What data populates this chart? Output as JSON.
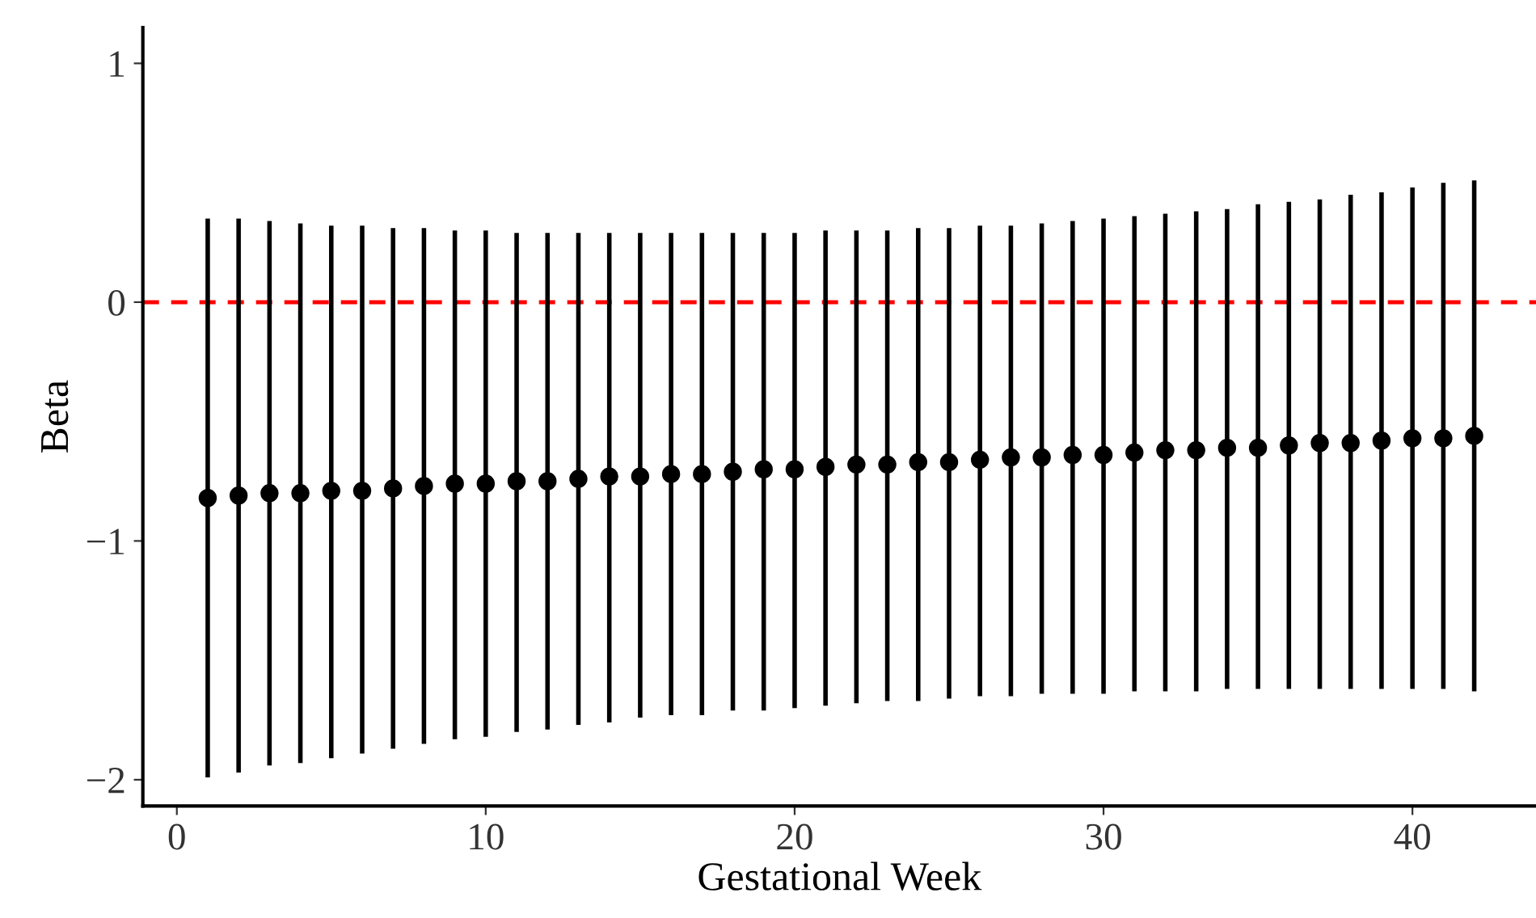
{
  "chart_data": {
    "type": "scatter",
    "xlabel": "Gestational Week",
    "ylabel": "Beta",
    "x": [
      1,
      2,
      3,
      4,
      5,
      6,
      7,
      8,
      9,
      10,
      11,
      12,
      13,
      14,
      15,
      16,
      17,
      18,
      19,
      20,
      21,
      22,
      23,
      24,
      25,
      26,
      27,
      28,
      29,
      30,
      31,
      32,
      33,
      34,
      35,
      36,
      37,
      38,
      39,
      40,
      41,
      42
    ],
    "series": [
      {
        "color": "#000000",
        "values": [
          -0.82,
          -0.81,
          -0.8,
          -0.8,
          -0.79,
          -0.79,
          -0.78,
          -0.77,
          -0.76,
          -0.76,
          -0.75,
          -0.75,
          -0.74,
          -0.73,
          -0.73,
          -0.72,
          -0.72,
          -0.71,
          -0.7,
          -0.7,
          -0.69,
          -0.68,
          -0.68,
          -0.67,
          -0.67,
          -0.66,
          -0.65,
          -0.65,
          -0.64,
          -0.64,
          -0.63,
          -0.62,
          -0.62,
          -0.61,
          -0.61,
          -0.6,
          -0.59,
          -0.59,
          -0.58,
          -0.57,
          -0.57,
          -0.56
        ],
        "errors": [
          [
            -1.99,
            0.35
          ],
          [
            -1.97,
            0.35
          ],
          [
            -1.94,
            0.34
          ],
          [
            -1.93,
            0.33
          ],
          [
            -1.91,
            0.32
          ],
          [
            -1.89,
            0.32
          ],
          [
            -1.87,
            0.31
          ],
          [
            -1.85,
            0.31
          ],
          [
            -1.83,
            0.3
          ],
          [
            -1.82,
            0.3
          ],
          [
            -1.8,
            0.29
          ],
          [
            -1.79,
            0.29
          ],
          [
            -1.77,
            0.29
          ],
          [
            -1.76,
            0.29
          ],
          [
            -1.74,
            0.29
          ],
          [
            -1.73,
            0.29
          ],
          [
            -1.73,
            0.29
          ],
          [
            -1.71,
            0.29
          ],
          [
            -1.71,
            0.29
          ],
          [
            -1.7,
            0.29
          ],
          [
            -1.69,
            0.3
          ],
          [
            -1.68,
            0.3
          ],
          [
            -1.67,
            0.3
          ],
          [
            -1.67,
            0.31
          ],
          [
            -1.66,
            0.31
          ],
          [
            -1.65,
            0.32
          ],
          [
            -1.65,
            0.32
          ],
          [
            -1.64,
            0.33
          ],
          [
            -1.64,
            0.34
          ],
          [
            -1.64,
            0.35
          ],
          [
            -1.63,
            0.36
          ],
          [
            -1.63,
            0.37
          ],
          [
            -1.63,
            0.38
          ],
          [
            -1.62,
            0.39
          ],
          [
            -1.62,
            0.41
          ],
          [
            -1.62,
            0.42
          ],
          [
            -1.62,
            0.43
          ],
          [
            -1.62,
            0.45
          ],
          [
            -1.62,
            0.46
          ],
          [
            -1.62,
            0.48
          ],
          [
            -1.62,
            0.5
          ],
          [
            -1.63,
            0.51
          ]
        ]
      }
    ],
    "xlim": [
      -1.1,
      44
    ],
    "ylim": [
      -2.11,
      1.15
    ],
    "xticks": [
      0,
      10,
      20,
      30,
      40
    ],
    "yticks": [
      {
        "value": -2,
        "label": "−2"
      },
      {
        "value": -1,
        "label": "−1"
      },
      0,
      1
    ],
    "ref_lines": [
      {
        "axis": "y",
        "value": 0,
        "color": "#ff0000",
        "line_style": "dashed"
      }
    ],
    "grid": false,
    "marker": "circle"
  }
}
